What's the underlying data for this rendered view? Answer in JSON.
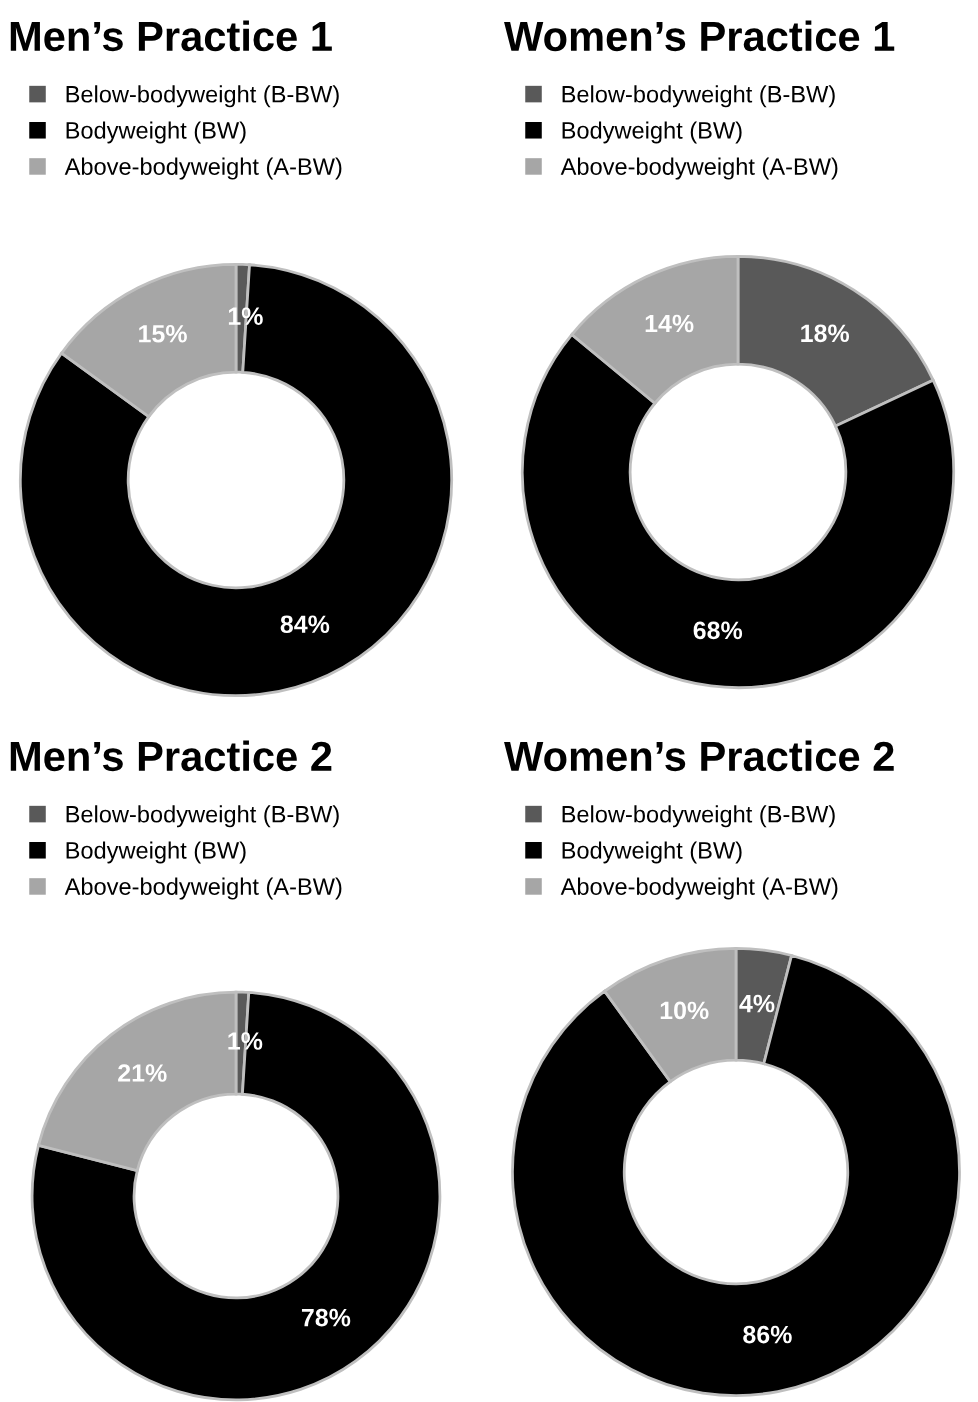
{
  "chart_data": [
    {
      "type": "donut",
      "title": "Men’s Practice 1",
      "categories": [
        "Below-bodyweight (B-BW)",
        "Bodyweight (BW)",
        "Above-bodyweight (A-BW)"
      ],
      "values": [
        1,
        84,
        15
      ],
      "colors": [
        "#595959",
        "#000000",
        "#a6a6a6"
      ],
      "value_labels": [
        "1%",
        "84%",
        "15%"
      ],
      "legend": "top"
    },
    {
      "type": "donut",
      "title": "Women’s Practice 1",
      "categories": [
        "Below-bodyweight (B-BW)",
        "Bodyweight (BW)",
        "Above-bodyweight (A-BW)"
      ],
      "values": [
        18,
        68,
        14
      ],
      "colors": [
        "#595959",
        "#000000",
        "#a6a6a6"
      ],
      "value_labels": [
        "18%",
        "68%",
        "14%"
      ],
      "legend": "top"
    },
    {
      "type": "donut",
      "title": "Men’s Practice 2",
      "categories": [
        "Below-bodyweight (B-BW)",
        "Bodyweight (BW)",
        "Above-bodyweight (A-BW)"
      ],
      "values": [
        1,
        78,
        21
      ],
      "colors": [
        "#595959",
        "#000000",
        "#a6a6a6"
      ],
      "value_labels": [
        "1%",
        "78%",
        "21%"
      ],
      "legend": "top"
    },
    {
      "type": "donut",
      "title": "Women’s Practice 2",
      "categories": [
        "Below-bodyweight (B-BW)",
        "Bodyweight (BW)",
        "Above-bodyweight (A-BW)"
      ],
      "values": [
        4,
        86,
        10
      ],
      "colors": [
        "#595959",
        "#000000",
        "#a6a6a6"
      ],
      "value_labels": [
        "4%",
        "86%",
        "10%"
      ],
      "legend": "top"
    }
  ]
}
